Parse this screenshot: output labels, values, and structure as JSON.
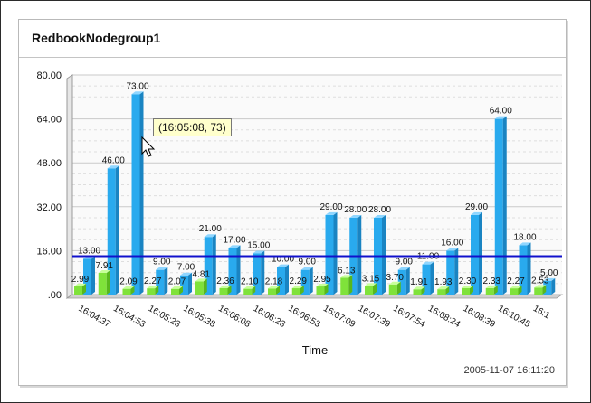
{
  "panel": {
    "title": "RedbookNodegroup1"
  },
  "tooltip": {
    "text": "(16:05:08, 73)"
  },
  "timestamp": "2005-11-07 16:11:20",
  "colors": {
    "series_blue": "#29aaee",
    "series_green": "#7fe23a",
    "threshold": "#1111cc"
  },
  "chart_data": {
    "type": "bar",
    "xlabel": "Time",
    "ylabel": "",
    "ylim": [
      0,
      80
    ],
    "yticks": [
      "80.00",
      "64.00",
      "48.00",
      "32.00",
      "16.00",
      ".00"
    ],
    "grid": true,
    "threshold": 14,
    "x_tick_labels": [
      "16:04:37",
      "16:04:53",
      "16:05:23",
      "16:05:38",
      "16:06:08",
      "16:06:23",
      "16:06:53",
      "16:07:09",
      "16:07:39",
      "16:07:54",
      "16:08:24",
      "16:08:39",
      "16:10:45",
      "16:1"
    ],
    "series": [
      {
        "values": [
          13,
          46,
          73,
          9,
          7,
          21,
          17,
          15,
          10,
          9,
          29,
          28,
          28,
          9,
          11,
          16,
          29,
          64,
          18,
          5
        ],
        "labels": [
          "13.00",
          "46.00",
          "73.00",
          "9.00",
          "7.00",
          "21.00",
          "17.00",
          "15.00",
          "10.00",
          "9.00",
          "29.00",
          "28.00",
          "28.00",
          "9.00",
          "11.00",
          "16.00",
          "29.00",
          "64.00",
          "18.00",
          "5.00"
        ]
      },
      {
        "values": [
          2.99,
          7.91,
          2.09,
          2.27,
          2.07,
          4.81,
          2.36,
          2.1,
          2.18,
          2.29,
          2.95,
          6.13,
          3.15,
          3.7,
          1.91,
          1.93,
          2.3,
          2.33,
          2.27,
          2.53
        ],
        "labels": [
          "2.99",
          "7.91",
          "2.09",
          "2.27",
          "2.07",
          "4.81",
          "2.36",
          "2.10",
          "2.18",
          "2.29",
          "2.95",
          "6.13",
          "3.15",
          "3.70",
          "1.91",
          "1.93",
          "2.30",
          "2.33",
          "2.27",
          "2.53"
        ]
      }
    ]
  }
}
